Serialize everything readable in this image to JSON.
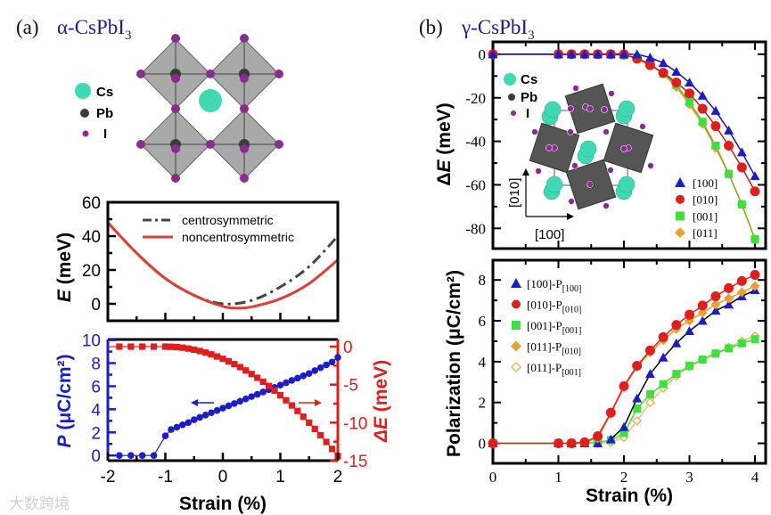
{
  "panel_a": {
    "label": "(a)",
    "title": "α-CsPbI",
    "title_sub": "3",
    "legend": {
      "cs": "Cs",
      "pb": "Pb",
      "i": "I"
    }
  },
  "panel_b": {
    "label": "(b)",
    "title": "γ-CsPbI",
    "title_sub": "3",
    "legend": {
      "cs": "Cs",
      "pb": "Pb",
      "i": "I"
    },
    "inset_axes": {
      "x": "[100]",
      "y": "[010]"
    }
  },
  "watermark": "大数跨境",
  "colors": {
    "title": "#1a1a8c",
    "cs": "#3fd9b4",
    "pb": "#3a3a3a",
    "i": "#8a2c8e",
    "octa": "#8c8c8c",
    "blue": "#1c1cc8",
    "red": "#e01e1e",
    "green": "#3ee03e",
    "orange": "#e8a030",
    "navy": "#16168a"
  },
  "chart_data": [
    {
      "id": "energy",
      "type": "line",
      "ylabel_italic": "E",
      "ylabel_rest": " (meV)",
      "xlim": [
        -2,
        2
      ],
      "ylim": [
        -10,
        60
      ],
      "yticks": [
        "0",
        "20",
        "40",
        "60"
      ],
      "legend_position": "top-center",
      "series": [
        {
          "name": "centrosymmetric",
          "style": "dash-dot",
          "color": "#444444",
          "x": [
            -2,
            -1.5,
            -1,
            -0.5,
            0,
            0.5,
            1,
            1.5,
            2
          ],
          "y": [
            48,
            30,
            15,
            5,
            0,
            2,
            10,
            22,
            40
          ]
        },
        {
          "name": "noncentrosymmetric",
          "style": "solid",
          "color": "#d9413a",
          "x": [
            -2,
            -1.5,
            -1,
            -0.5,
            0,
            0.25,
            0.5,
            1,
            1.5,
            2
          ],
          "y": [
            48,
            30,
            15,
            5,
            -1.5,
            -2.5,
            -1.8,
            3,
            12,
            26
          ]
        }
      ]
    },
    {
      "id": "polarization-dE-alpha",
      "type": "line",
      "xlabel": "Strain (%)",
      "xlim": [
        -2,
        2
      ],
      "xticks": [
        "-2",
        "-1",
        "0",
        "1",
        "2"
      ],
      "left": {
        "label_italic": "P",
        "label_rest": " (μC/cm²)",
        "ylim": [
          -0.45,
          10.05
        ],
        "ticks": [
          "0",
          "2",
          "4",
          "6",
          "8",
          "10"
        ]
      },
      "right": {
        "label_italic": "ΔE",
        "label_rest": " (meV)",
        "ylim": [
          -15,
          0.94
        ],
        "ticks": [
          "0",
          "-5",
          "-10",
          "-15"
        ]
      },
      "series": [
        {
          "name": "P",
          "axis": "left",
          "marker": "circle",
          "color": "#1c1cc8",
          "x": [
            -1.8,
            -1.6,
            -1.4,
            -1.2,
            -1.0,
            -0.9,
            -0.8,
            -0.7,
            -0.6,
            -0.5,
            -0.4,
            -0.3,
            -0.2,
            -0.1,
            0,
            0.1,
            0.2,
            0.3,
            0.4,
            0.5,
            0.6,
            0.7,
            0.8,
            0.9,
            1.0,
            1.1,
            1.2,
            1.3,
            1.4,
            1.5,
            1.6,
            1.7,
            1.8,
            1.9,
            2.0
          ],
          "y": [
            0,
            0,
            0,
            0,
            1.7,
            2.25,
            2.45,
            2.65,
            2.85,
            3.1,
            3.3,
            3.5,
            3.7,
            3.9,
            4.1,
            4.3,
            4.5,
            4.7,
            4.9,
            5.1,
            5.3,
            5.5,
            5.7,
            5.9,
            6.1,
            6.3,
            6.5,
            6.7,
            6.9,
            7.1,
            7.35,
            7.6,
            7.85,
            8.1,
            8.5
          ]
        },
        {
          "name": "ΔE",
          "axis": "right",
          "marker": "square",
          "color": "#e01e1e",
          "x": [
            -1.8,
            -1.6,
            -1.4,
            -1.2,
            -1.0,
            -0.9,
            -0.8,
            -0.7,
            -0.6,
            -0.5,
            -0.4,
            -0.3,
            -0.2,
            -0.1,
            0,
            0.1,
            0.2,
            0.3,
            0.4,
            0.5,
            0.6,
            0.7,
            0.8,
            0.9,
            1.0,
            1.1,
            1.2,
            1.3,
            1.4,
            1.5,
            1.6,
            1.7,
            1.8,
            1.9,
            2.0
          ],
          "y": [
            0,
            0,
            0,
            0,
            0,
            -0.02,
            -0.06,
            -0.14,
            -0.26,
            -0.4,
            -0.58,
            -0.78,
            -1.02,
            -1.3,
            -1.6,
            -1.94,
            -2.3,
            -2.7,
            -3.14,
            -3.6,
            -4.1,
            -4.62,
            -5.18,
            -5.78,
            -6.4,
            -7.06,
            -7.74,
            -8.46,
            -9.22,
            -10.0,
            -10.82,
            -11.66,
            -12.54,
            -13.46,
            -14.4
          ]
        }
      ]
    },
    {
      "id": "dE-gamma",
      "type": "line",
      "ylabel_prefix": "Δ",
      "ylabel_italic": "E",
      "ylabel_rest": " (meV)",
      "xlim": [
        0,
        4.163
      ],
      "ylim": [
        -89.3,
        5.7
      ],
      "yticks": [
        "0",
        "-20",
        "-40",
        "-60",
        "-80"
      ],
      "legend_position": "bottom-right",
      "x": [
        0,
        1,
        1.2,
        1.4,
        1.6,
        1.8,
        2,
        2.2,
        2.4,
        2.6,
        2.8,
        3,
        3.2,
        3.4,
        3.6,
        3.8,
        4
      ],
      "series": [
        {
          "name": "[100]",
          "marker": "triangle",
          "color": "#1c1cc8",
          "line": "#16168a",
          "y": [
            0,
            0,
            0,
            0,
            0,
            0,
            0,
            0,
            -1.5,
            -4,
            -8,
            -13,
            -19,
            -26,
            -35,
            -45,
            -56
          ]
        },
        {
          "name": "[010]",
          "marker": "circle",
          "color": "#e01e1e",
          "line": "#c81818",
          "y": [
            0,
            0,
            0,
            0,
            0,
            0,
            0,
            -2,
            -5,
            -8.5,
            -13,
            -18,
            -25,
            -33,
            -42,
            -52,
            -63
          ]
        },
        {
          "name": "[001]",
          "marker": "square",
          "color": "#3ee03e",
          "line": "#7fb030",
          "y": [
            0,
            0,
            0,
            0,
            0,
            0,
            -0.5,
            -1.5,
            -4.5,
            -9,
            -14,
            -22,
            -31,
            -42,
            -55,
            -69,
            -85
          ]
        },
        {
          "name": "[011]",
          "marker": "diamond",
          "color": "#e8a030",
          "line": "#d8a030",
          "y": [
            0,
            0,
            0,
            0,
            0,
            0,
            -0.5,
            -1.5,
            -4.5,
            -9,
            -15,
            -23,
            -32,
            -43,
            -55,
            -69,
            -85
          ]
        }
      ]
    },
    {
      "id": "polarization-gamma",
      "type": "line",
      "ylabel": "Polarization (μC/cm²)",
      "xlabel": "Strain (%)",
      "xlim": [
        0,
        4.163
      ],
      "ylim": [
        -0.98,
        8.97
      ],
      "xticks": [
        "0",
        "1",
        "2",
        "3",
        "4"
      ],
      "yticks": [
        "0",
        "2",
        "4",
        "6",
        "8"
      ],
      "legend_position": "top-left",
      "x": [
        0,
        1,
        1.2,
        1.4,
        1.6,
        1.8,
        2,
        2.2,
        2.4,
        2.6,
        2.8,
        3,
        3.2,
        3.4,
        3.6,
        3.8,
        4
      ],
      "series": [
        {
          "name": "[100]-P",
          "sub": "[100]",
          "marker": "triangle",
          "color": "#1c1cc8",
          "line": "#000000",
          "y": [
            0,
            0,
            0,
            0,
            0,
            0.2,
            0.8,
            2.2,
            3.4,
            4.2,
            4.9,
            5.5,
            6.0,
            6.5,
            6.8,
            7.2,
            7.5
          ]
        },
        {
          "name": "[010]-P",
          "sub": "[010]",
          "marker": "circle",
          "color": "#e01e1e",
          "line": "#e01e1e",
          "y": [
            0,
            0,
            0,
            0.05,
            0.35,
            1.5,
            2.8,
            3.8,
            4.55,
            5.2,
            5.8,
            6.3,
            6.75,
            7.2,
            7.6,
            7.95,
            8.25
          ]
        },
        {
          "name": "[001]-P",
          "sub": "[001]",
          "marker": "square",
          "color": "#3ee03e",
          "line": "#3ee03e",
          "y": [
            0,
            0,
            0,
            0,
            0.05,
            0.15,
            0.5,
            1.7,
            2.4,
            2.9,
            3.4,
            3.8,
            4.1,
            4.4,
            4.65,
            4.9,
            5.1
          ]
        },
        {
          "name": "[011]-P",
          "sub": "[010]",
          "marker": "diamond",
          "color": "#e8a030",
          "line": "#e8a030",
          "y": [
            0,
            0,
            0,
            0.05,
            0.25,
            1.45,
            2.75,
            3.75,
            4.45,
            5.05,
            5.6,
            6.0,
            6.4,
            6.8,
            7.1,
            7.4,
            7.7
          ]
        },
        {
          "name": "[011]-P",
          "sub": "[001]",
          "marker": "open-diamond",
          "color": "#e8b050",
          "line": "#e8c080",
          "y": [
            0,
            0,
            0,
            0,
            0,
            0.05,
            0.3,
            1.1,
            2.0,
            2.7,
            3.3,
            3.75,
            4.1,
            4.4,
            4.7,
            5.0,
            5.25
          ]
        }
      ]
    }
  ]
}
